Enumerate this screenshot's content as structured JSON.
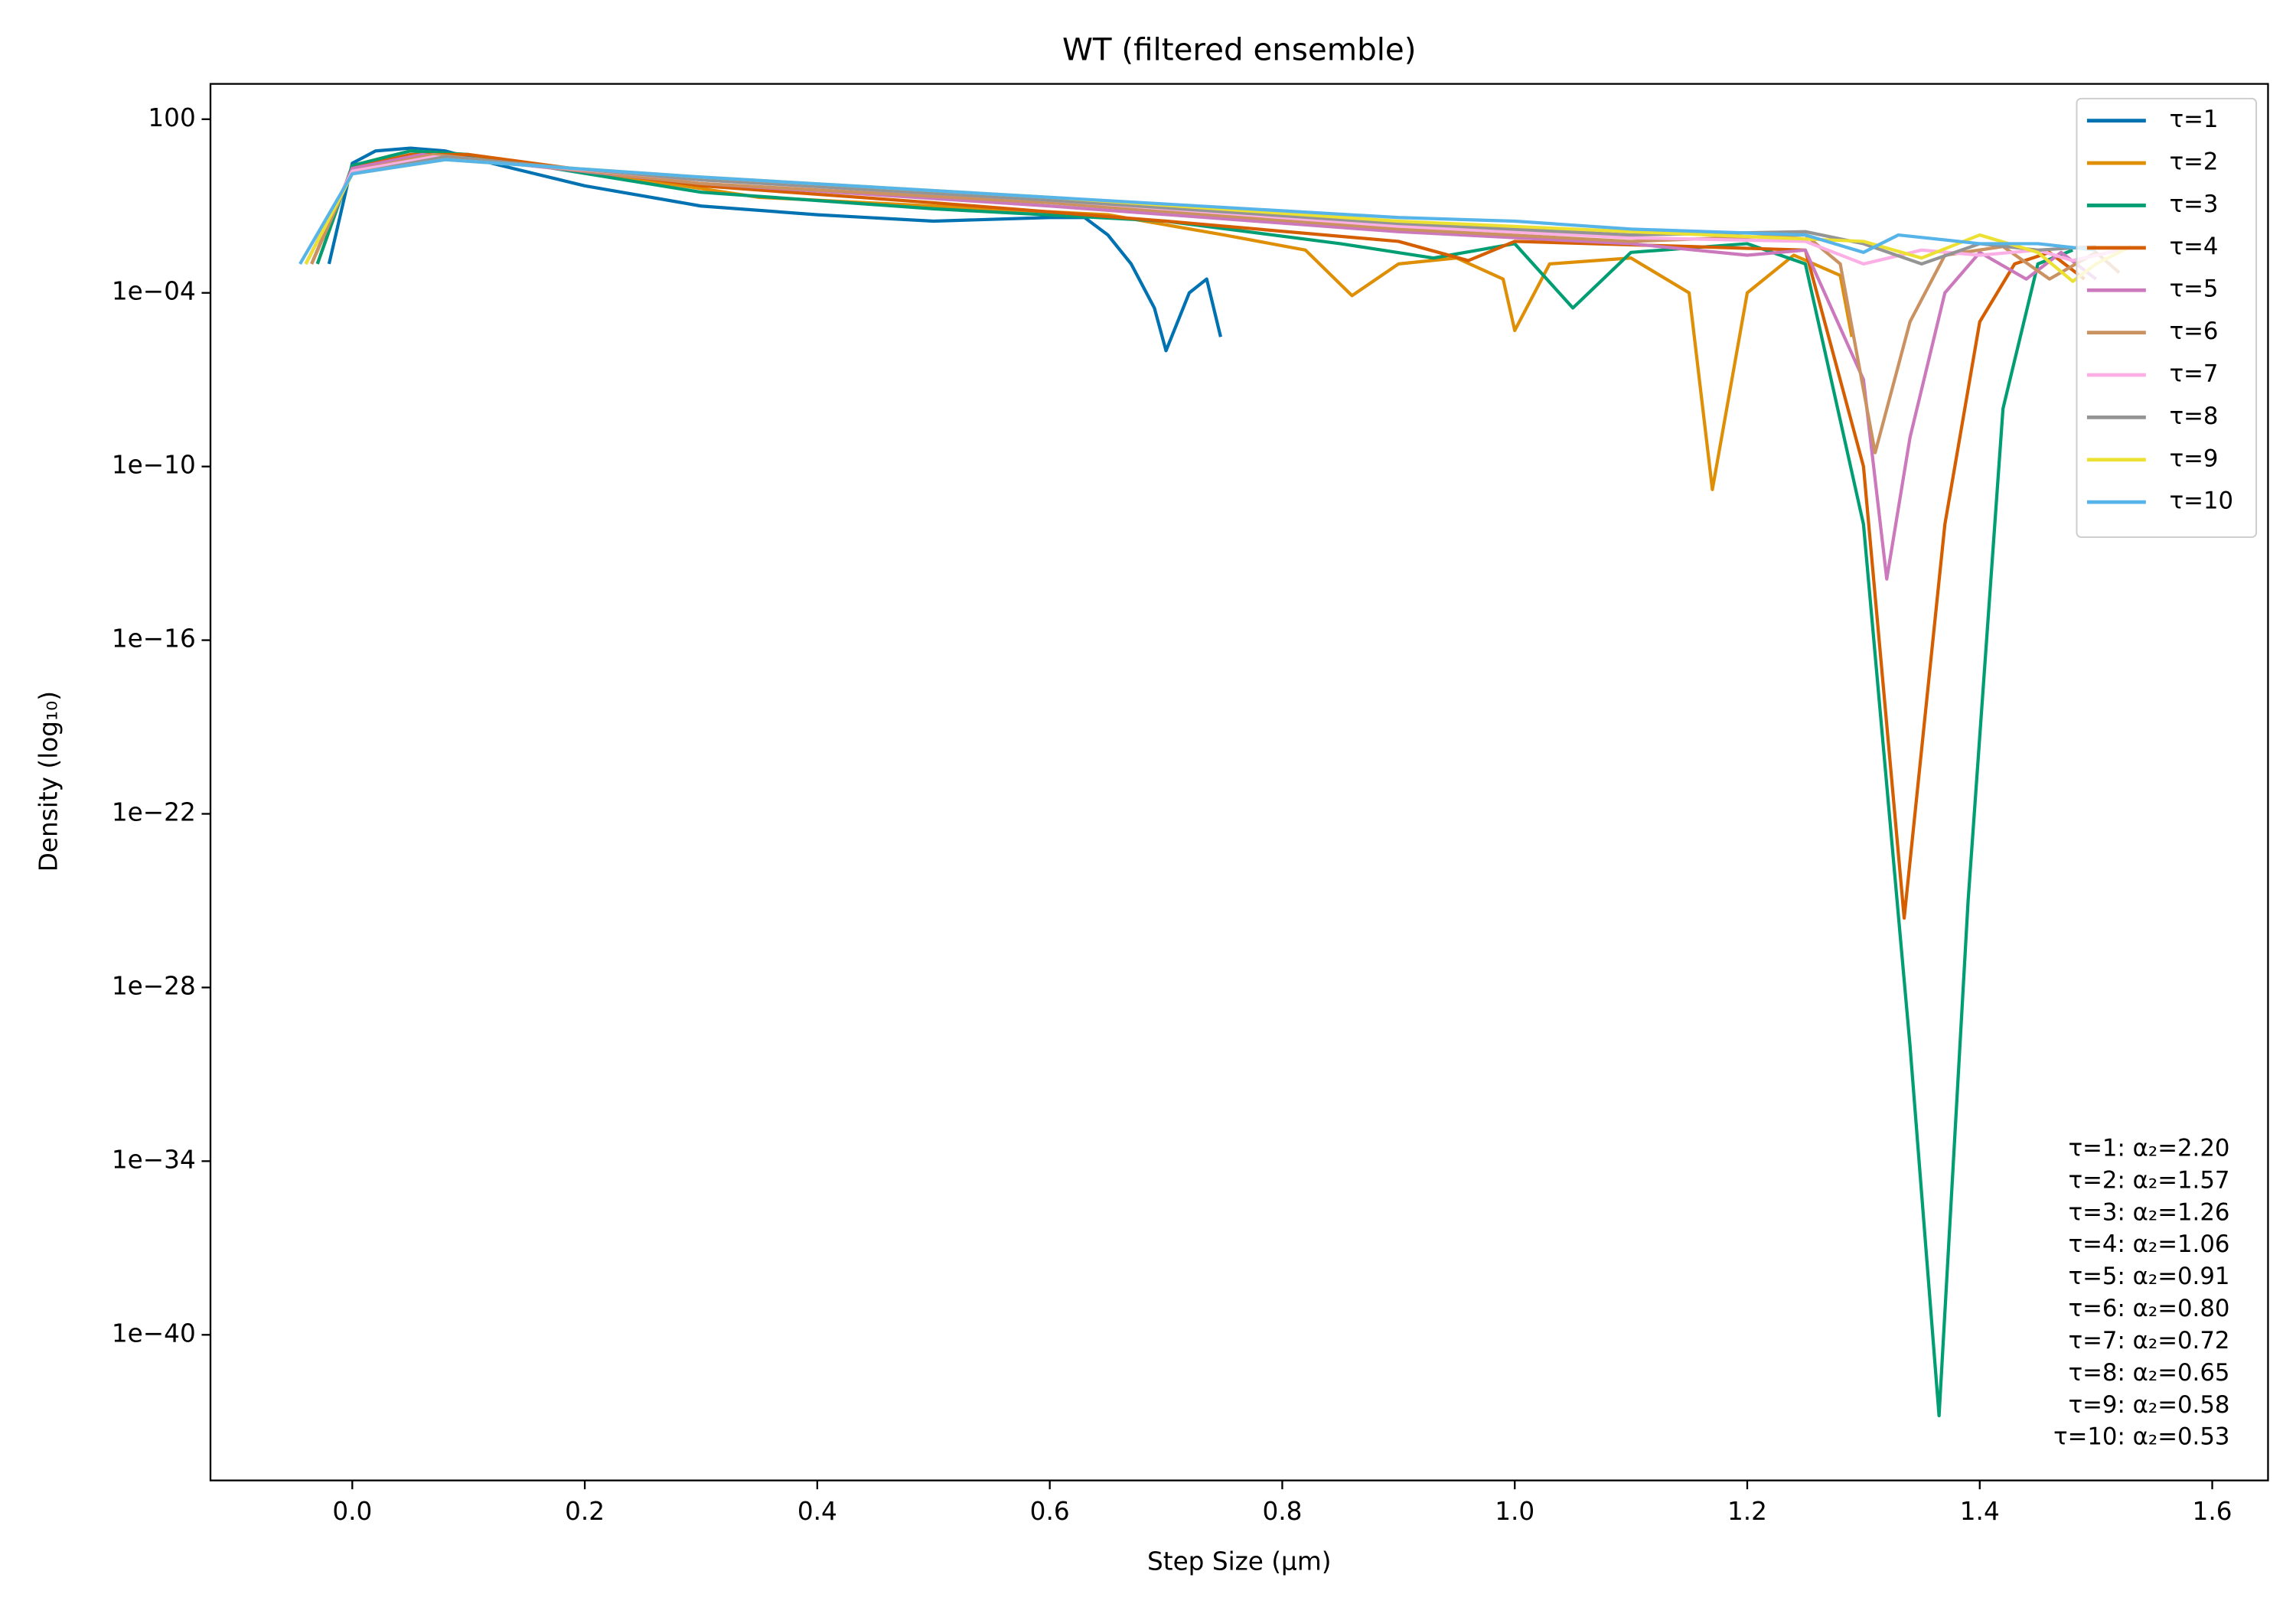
{
  "chart_data": {
    "type": "line",
    "title": "WT (filtered ensemble)",
    "xlabel": "Step Size (μm)",
    "ylabel": "Density (log₁₀)",
    "yscale": "log",
    "grid": false,
    "legend": "upper right",
    "xlim": [
      -0.122,
      1.648
    ],
    "ylim": [
      9.3e-46,
      1660
    ],
    "xticks": [
      {
        "value": 0,
        "label": "0.0"
      },
      0.2,
      0.4,
      0.6,
      0.8,
      {
        "value": 1,
        "label": "1.0"
      },
      1.2,
      1.4,
      1.6
    ],
    "yticks": [
      100,
      {
        "value": 0.0001,
        "label": "1e−04"
      },
      {
        "value": 1e-10,
        "label": "1e−10"
      },
      {
        "value": 1e-16,
        "label": "1e−16"
      },
      {
        "value": 1e-22,
        "label": "1e−22"
      },
      {
        "value": 1e-28,
        "label": "1e−28"
      },
      {
        "value": 1e-34,
        "label": "1e−34"
      },
      {
        "value": 1e-40,
        "label": "1e−40"
      }
    ],
    "series": [
      {
        "name": "τ=1",
        "color": "#0072b2",
        "x": [
          -0.02,
          0,
          0.02,
          0.05,
          0.08,
          0.12,
          0.2,
          0.3,
          0.4,
          0.5,
          0.6,
          0.63,
          0.65,
          0.67,
          0.69,
          0.7,
          0.72,
          0.735,
          0.747
        ],
        "values": [
          0.001,
          3,
          8,
          10,
          8,
          3,
          0.5,
          0.1,
          0.05,
          0.03,
          0.04,
          0.04,
          0.01,
          0.001,
          3e-05,
          1e-06,
          0.0001,
          0.0003,
          3e-06
        ]
      },
      {
        "name": "τ=2",
        "color": "#de8f05",
        "x": [
          -0.03,
          0,
          0.05,
          0.1,
          0.2,
          0.35,
          0.5,
          0.65,
          0.75,
          0.82,
          0.86,
          0.9,
          0.95,
          0.99,
          1.0,
          1.03,
          1.1,
          1.15,
          1.17,
          1.2,
          1.24,
          1.28,
          1.29
        ],
        "values": [
          0.001,
          2.5,
          8,
          6,
          1.6,
          0.2,
          0.1,
          0.05,
          0.01,
          0.003,
          8e-05,
          0.001,
          0.0016,
          0.0003,
          5e-06,
          0.001,
          0.0016,
          0.0001,
          1.6e-11,
          0.0001,
          0.002,
          0.0004,
          3e-06
        ]
      },
      {
        "name": "τ=3",
        "color": "#029e73",
        "x": [
          -0.03,
          0,
          0.05,
          0.1,
          0.3,
          0.5,
          0.7,
          0.85,
          0.93,
          1.0,
          1.05,
          1.1,
          1.2,
          1.25,
          1.3,
          1.34,
          1.365,
          1.39,
          1.42,
          1.45,
          1.48
        ],
        "values": [
          0.001,
          2.5,
          8,
          6,
          0.3,
          0.08,
          0.03,
          0.005,
          0.0016,
          0.005,
          3e-05,
          0.0025,
          0.005,
          0.001,
          1e-12,
          1e-30,
          1.6e-43,
          1e-25,
          1e-08,
          0.001,
          0.003
        ]
      },
      {
        "name": "τ=4",
        "color": "#d55e00",
        "x": [
          -0.035,
          0,
          0.05,
          0.1,
          0.3,
          0.5,
          0.7,
          0.9,
          0.96,
          1.0,
          1.15,
          1.25,
          1.3,
          1.335,
          1.37,
          1.4,
          1.43,
          1.46,
          1.49
        ],
        "values": [
          0.001,
          2,
          6,
          6,
          0.5,
          0.13,
          0.03,
          0.006,
          0.0013,
          0.006,
          0.004,
          0.003,
          1e-10,
          2.5e-26,
          1e-12,
          1e-05,
          0.001,
          0.0025,
          0.0003
        ]
      },
      {
        "name": "τ=5",
        "color": "#cc78bc",
        "x": [
          -0.035,
          0,
          0.06,
          0.3,
          0.6,
          0.9,
          1.1,
          1.2,
          1.25,
          1.3,
          1.32,
          1.34,
          1.37,
          1.4,
          1.44,
          1.47,
          1.5
        ],
        "values": [
          0.001,
          2,
          6,
          0.6,
          0.1,
          0.013,
          0.005,
          0.002,
          0.003,
          1e-07,
          1.3e-14,
          1e-09,
          0.0001,
          0.0025,
          0.0003,
          0.0025,
          0.0003
        ]
      },
      {
        "name": "τ=6",
        "color": "#ca9161",
        "x": [
          -0.035,
          0,
          0.07,
          0.3,
          0.6,
          0.9,
          1.1,
          1.25,
          1.28,
          1.31,
          1.34,
          1.37,
          1.42,
          1.46,
          1.5,
          1.52
        ],
        "values": [
          0.001,
          1.6,
          6,
          0.6,
          0.13,
          0.016,
          0.006,
          0.01,
          0.001,
          3e-10,
          1e-05,
          0.002,
          0.004,
          0.0003,
          0.0025,
          0.0005
        ]
      },
      {
        "name": "τ=7",
        "color": "#fbafe4",
        "x": [
          -0.04,
          0,
          0.07,
          0.3,
          0.6,
          0.9,
          1.1,
          1.25,
          1.3,
          1.35,
          1.4,
          1.45,
          1.48,
          1.52
        ],
        "values": [
          0.001,
          1.6,
          5,
          0.8,
          0.16,
          0.02,
          0.008,
          0.006,
          0.001,
          0.003,
          0.002,
          0.003,
          0.0013,
          0.003
        ]
      },
      {
        "name": "τ=8",
        "color": "#949494",
        "x": [
          -0.04,
          0,
          0.08,
          0.3,
          0.6,
          0.9,
          1.1,
          1.25,
          1.3,
          1.35,
          1.4,
          1.45,
          1.5
        ],
        "values": [
          0.001,
          1.3,
          5,
          0.8,
          0.16,
          0.025,
          0.01,
          0.013,
          0.005,
          0.001,
          0.005,
          0.003,
          0.004
        ]
      },
      {
        "name": "τ=9",
        "color": "#ece133",
        "x": [
          -0.04,
          0,
          0.08,
          0.3,
          0.6,
          0.9,
          1.1,
          1.3,
          1.35,
          1.4,
          1.45,
          1.48,
          1.5,
          1.53
        ],
        "values": [
          0.001,
          1.3,
          4,
          1,
          0.2,
          0.03,
          0.013,
          0.006,
          0.0016,
          0.01,
          0.0025,
          0.00025,
          0.001,
          0.004
        ]
      },
      {
        "name": "τ=10",
        "color": "#56b4e9",
        "x": [
          -0.045,
          0,
          0.08,
          0.3,
          0.6,
          0.9,
          1.0,
          1.1,
          1.25,
          1.3,
          1.33,
          1.4,
          1.45,
          1.5
        ],
        "values": [
          0.001,
          1.3,
          4,
          1,
          0.2,
          0.04,
          0.03,
          0.016,
          0.01,
          0.0025,
          0.01,
          0.005,
          0.005,
          0.003
        ]
      }
    ],
    "annotations": [
      "τ=1: α₂=2.20",
      "τ=2: α₂=1.57",
      "τ=3: α₂=1.26",
      "τ=4: α₂=1.06",
      "τ=5: α₂=0.91",
      "τ=6: α₂=0.80",
      "τ=7: α₂=0.72",
      "τ=8: α₂=0.65",
      "τ=9: α₂=0.58",
      "τ=10: α₂=0.53"
    ]
  }
}
